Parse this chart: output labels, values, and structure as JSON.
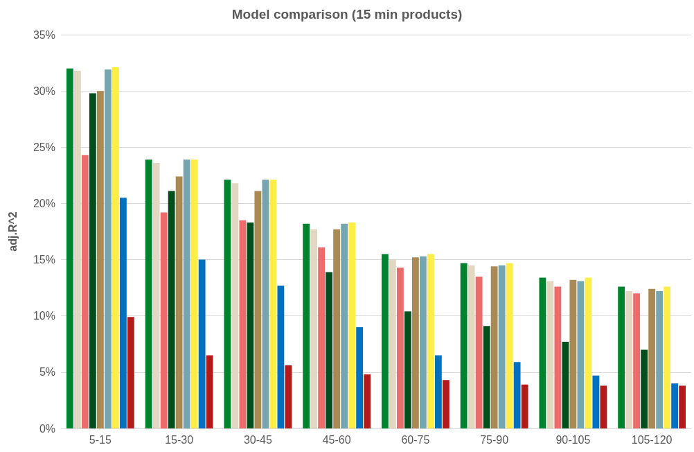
{
  "chart_data": {
    "type": "bar",
    "title": "Model comparison (15 min products)",
    "ylabel": "adj.R^2",
    "categories": [
      "5-15",
      "15-30",
      "30-45",
      "45-60",
      "60-75",
      "75-90",
      "90-105",
      "105-120"
    ],
    "series": [
      {
        "color": "#00832f",
        "values": [
          32.0,
          23.9,
          22.1,
          18.2,
          15.5,
          14.7,
          13.4,
          12.6
        ]
      },
      {
        "color": "#e2d7c1",
        "values": [
          31.8,
          23.6,
          21.8,
          17.7,
          15.0,
          14.5,
          13.1,
          12.2
        ]
      },
      {
        "color": "#ec6b6b",
        "values": [
          24.3,
          19.2,
          18.5,
          16.1,
          14.3,
          13.5,
          12.6,
          12.0
        ]
      },
      {
        "color": "#024e1d",
        "values": [
          29.8,
          21.1,
          18.3,
          13.9,
          10.4,
          9.1,
          7.7,
          7.0
        ]
      },
      {
        "color": "#a98a54",
        "values": [
          30.0,
          22.4,
          21.1,
          17.7,
          15.2,
          14.4,
          13.2,
          12.4
        ]
      },
      {
        "color": "#75a5af",
        "values": [
          31.9,
          23.9,
          22.1,
          18.2,
          15.3,
          14.5,
          13.1,
          12.2
        ]
      },
      {
        "color": "#ffed47",
        "values": [
          32.1,
          23.9,
          22.1,
          18.3,
          15.5,
          14.7,
          13.4,
          12.6
        ]
      },
      {
        "color": "#0070c0",
        "values": [
          20.5,
          15.0,
          12.7,
          9.0,
          6.5,
          5.9,
          4.7,
          4.0
        ]
      },
      {
        "color": "#b31b1b",
        "values": [
          9.9,
          6.5,
          5.6,
          4.8,
          4.3,
          3.9,
          3.8,
          3.8
        ]
      }
    ],
    "ylim": [
      0,
      35
    ],
    "yticks": [
      {
        "value": 0,
        "label": "0%"
      },
      {
        "value": 5,
        "label": "5%"
      },
      {
        "value": 10,
        "label": "10%"
      },
      {
        "value": 15,
        "label": "15%"
      },
      {
        "value": 20,
        "label": "20%"
      },
      {
        "value": 25,
        "label": "25%"
      },
      {
        "value": 30,
        "label": "30%"
      },
      {
        "value": 35,
        "label": "35%"
      }
    ],
    "grid": "y"
  }
}
